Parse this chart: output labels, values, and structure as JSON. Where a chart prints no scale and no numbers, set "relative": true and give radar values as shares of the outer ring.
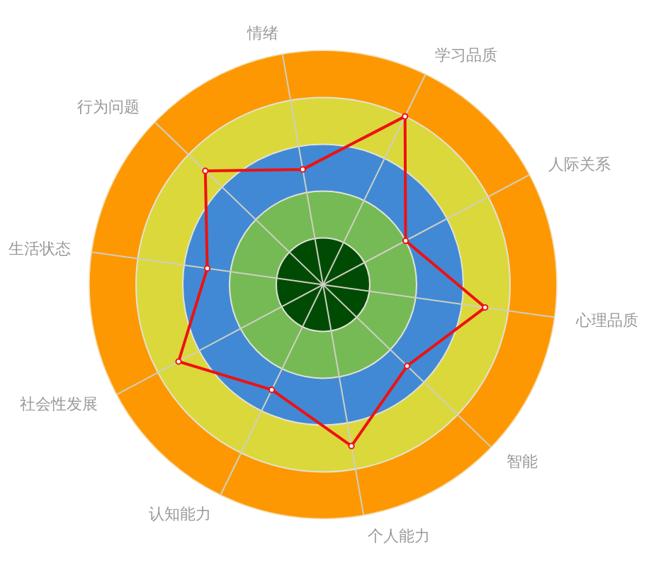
{
  "chart_data": {
    "type": "radar",
    "relative": true,
    "categories": [
      "情绪",
      "学习品质",
      "人际关系",
      "心理品质",
      "智能",
      "个人能力",
      "认知能力",
      "社会性发展",
      "生活状态",
      "行为问题"
    ],
    "series": [
      {
        "color": "#ee1111",
        "values": [
          0.5,
          0.8,
          0.4,
          0.7,
          0.5,
          0.7,
          0.5,
          0.7,
          0.5,
          0.7
        ]
      }
    ],
    "grid": true,
    "marker": "circle",
    "line_style": "solid"
  }
}
